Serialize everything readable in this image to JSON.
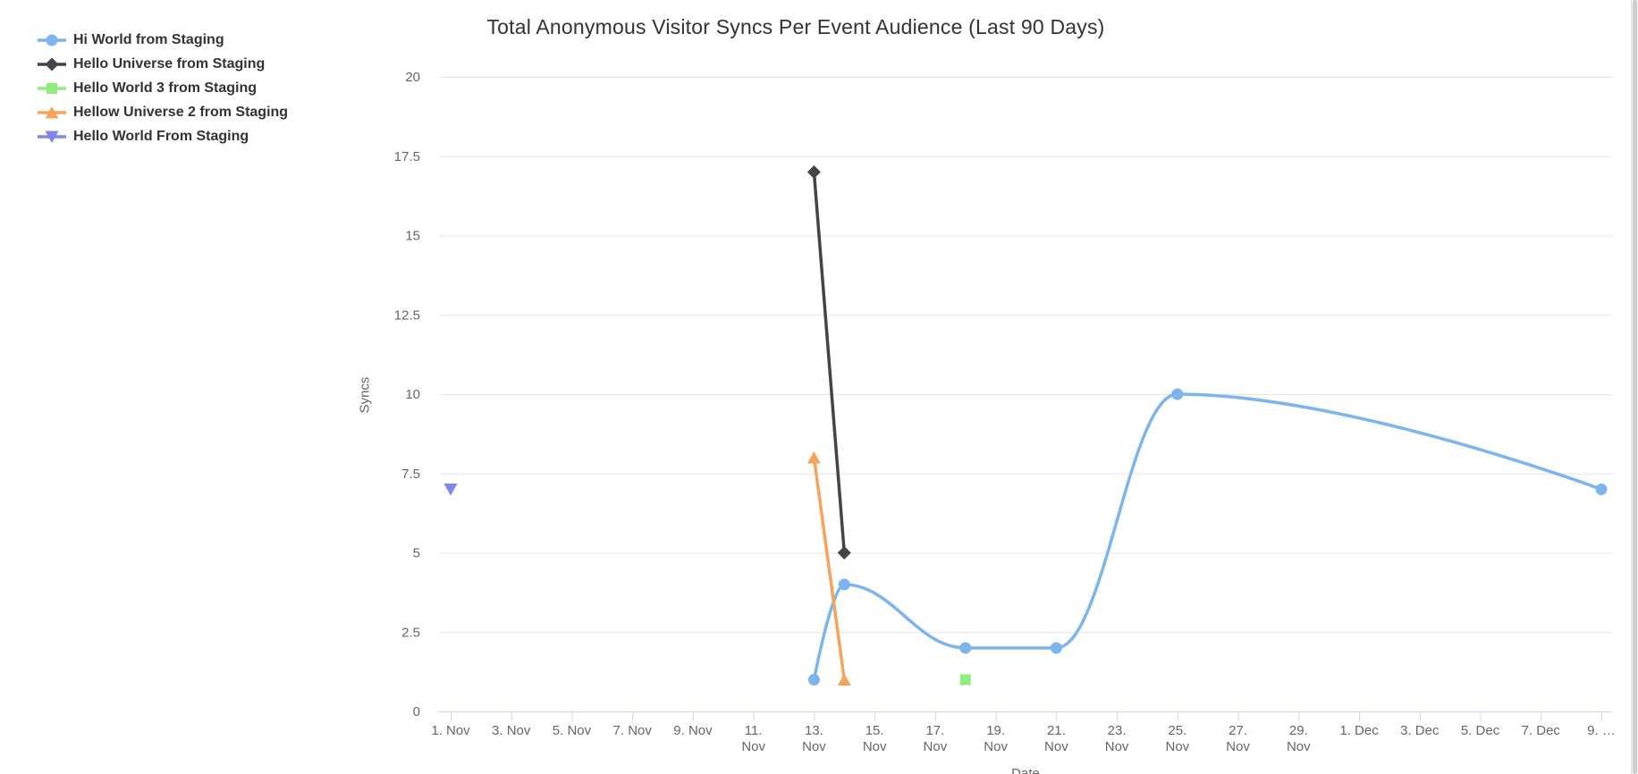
{
  "chart_data": {
    "type": "line",
    "title": "Total Anonymous Visitor Syncs Per Event Audience (Last 90 Days)",
    "xlabel": "Date",
    "ylabel": "Syncs",
    "ylim": [
      0,
      20
    ],
    "x_unit": "days offset from 1. Nov",
    "x_range_days": [
      0,
      38
    ],
    "grid": "horizontal",
    "legend_position": "top-left",
    "y_ticks": [
      {
        "value": 0,
        "label": "0"
      },
      {
        "value": 2.5,
        "label": "2.5"
      },
      {
        "value": 5,
        "label": "5"
      },
      {
        "value": 7.5,
        "label": "7.5"
      },
      {
        "value": 10,
        "label": "10"
      },
      {
        "value": 12.5,
        "label": "12.5"
      },
      {
        "value": 15,
        "label": "15"
      },
      {
        "value": 17.5,
        "label": "17.5"
      },
      {
        "value": 20,
        "label": "20"
      }
    ],
    "x_ticks": [
      {
        "day": 0,
        "label": "1. Nov",
        "wrap": false
      },
      {
        "day": 2,
        "label": "3. Nov",
        "wrap": false
      },
      {
        "day": 4,
        "label": "5. Nov",
        "wrap": false
      },
      {
        "day": 6,
        "label": "7. Nov",
        "wrap": false
      },
      {
        "day": 8,
        "label": "9. Nov",
        "wrap": false
      },
      {
        "day": 10,
        "label": "11. Nov",
        "wrap": true
      },
      {
        "day": 12,
        "label": "13. Nov",
        "wrap": true
      },
      {
        "day": 14,
        "label": "15. Nov",
        "wrap": true
      },
      {
        "day": 16,
        "label": "17. Nov",
        "wrap": true
      },
      {
        "day": 18,
        "label": "19. Nov",
        "wrap": true
      },
      {
        "day": 20,
        "label": "21. Nov",
        "wrap": true
      },
      {
        "day": 22,
        "label": "23. Nov",
        "wrap": true
      },
      {
        "day": 24,
        "label": "25. Nov",
        "wrap": true
      },
      {
        "day": 26,
        "label": "27. Nov",
        "wrap": true
      },
      {
        "day": 28,
        "label": "29. Nov",
        "wrap": true
      },
      {
        "day": 30,
        "label": "1. Dec",
        "wrap": false
      },
      {
        "day": 32,
        "label": "3. Dec",
        "wrap": false
      },
      {
        "day": 34,
        "label": "5. Dec",
        "wrap": false
      },
      {
        "day": 36,
        "label": "7. Dec",
        "wrap": false
      },
      {
        "day": 38,
        "label": "9. …",
        "wrap": false
      }
    ],
    "series": [
      {
        "name": "Hi World from Staging",
        "color": "#7cb5ec",
        "marker": "circle",
        "curve": "spline",
        "points": [
          {
            "date": "13. Nov",
            "day": 12,
            "value": 1
          },
          {
            "date": "14. Nov",
            "day": 13,
            "value": 4
          },
          {
            "date": "18. Nov",
            "day": 17,
            "value": 2
          },
          {
            "date": "21. Nov",
            "day": 20,
            "value": 2
          },
          {
            "date": "25. Nov",
            "day": 24,
            "value": 10
          },
          {
            "date": "9. Dec",
            "day": 38,
            "value": 7
          }
        ]
      },
      {
        "name": "Hello Universe from Staging",
        "color": "#434348",
        "marker": "diamond",
        "curve": "line",
        "points": [
          {
            "date": "13. Nov",
            "day": 12,
            "value": 17
          },
          {
            "date": "14. Nov",
            "day": 13,
            "value": 5
          }
        ]
      },
      {
        "name": "Hello World 3 from Staging",
        "color": "#90ed7d",
        "marker": "square",
        "curve": "line",
        "points": [
          {
            "date": "18. Nov",
            "day": 17,
            "value": 1
          }
        ]
      },
      {
        "name": "Hellow Universe 2 from Staging",
        "color": "#f7a35c",
        "marker": "triangle-up",
        "curve": "line",
        "points": [
          {
            "date": "13. Nov",
            "day": 12,
            "value": 8
          },
          {
            "date": "14. Nov",
            "day": 13,
            "value": 1
          }
        ]
      },
      {
        "name": "Hello World From Staging",
        "color": "#8085e9",
        "marker": "triangle-down",
        "curve": "line",
        "points": [
          {
            "date": "1. Nov",
            "day": 0,
            "value": 7
          }
        ]
      }
    ],
    "colors": {
      "grid": "#e6e6e6",
      "axis_line": "#ccd6eb",
      "tick": "#ccd6eb",
      "axis_label": "#666666",
      "axis_title": "#666666",
      "chart_title": "#333333",
      "legend_text": "#333333",
      "background": "#ffffff"
    }
  }
}
